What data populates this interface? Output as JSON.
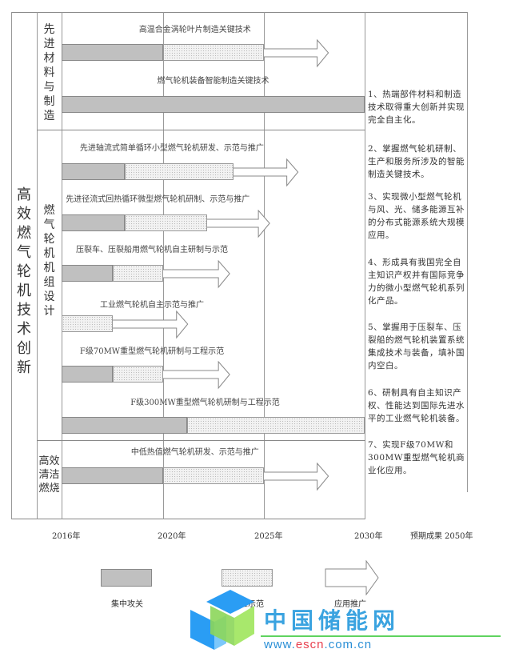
{
  "main_title": "高效燃气轮机技术创新",
  "categories": [
    {
      "label": "先进材料与制造"
    },
    {
      "label": "燃气轮机机组设计"
    },
    {
      "label": "高效清洁燃烧",
      "lines": [
        "高效",
        "清洁",
        "燃烧"
      ]
    }
  ],
  "axis": {
    "years": [
      "2016年",
      "2020年",
      "2025年",
      "2030年"
    ],
    "results_header": "预期成果",
    "end_label": "2050年"
  },
  "colors": {
    "focus": "#c0c0c0",
    "demo": "#f2f2f2",
    "border": "#888888"
  },
  "rows": [
    {
      "label": "高温合金涡轮叶片制造关键技术",
      "focus": [
        2016,
        2020
      ],
      "demo": [
        2020,
        2025
      ],
      "promote_end": 2028.2
    },
    {
      "label": "燃气轮机装备智能制造关键技术",
      "focus": [
        2016,
        2030
      ]
    },
    {
      "label": "先进轴流式简单循环小型燃气轮机研发、示范与推广",
      "focus": [
        2016,
        2018.5
      ],
      "demo": [
        2018.5,
        2023.5
      ],
      "promote_end": 2026.7
    },
    {
      "label": "先进径流式回热循环微型燃气轮机研制、示范与推广",
      "focus": [
        2016,
        2018.5
      ],
      "demo": [
        2018.5,
        2022.2
      ],
      "promote_end": 2025.3
    },
    {
      "label": "压裂车、压裂船用燃气轮机自主研制与示范",
      "focus": [
        2016,
        2018
      ],
      "demo": [
        2018,
        2020
      ],
      "promote_end": 2023.3
    },
    {
      "label": "工业燃气轮机自主示范与推广",
      "demo": [
        2016,
        2018
      ],
      "promote_end": 2021.2
    },
    {
      "label": "F级70MW重型燃气轮机研制与工程示范",
      "focus": [
        2016,
        2018
      ],
      "demo": [
        2018,
        2020
      ],
      "promote_end": 2023.3
    },
    {
      "label": "F级300MW重型燃气轮机研制与工程示范",
      "focus": [
        2016,
        2021.2
      ],
      "demo": [
        2021.2,
        2030
      ]
    },
    {
      "label": "中低热值燃气轮机研发、示范与推广",
      "focus": [
        2016,
        2020
      ],
      "demo": [
        2020,
        2025
      ],
      "promote_end": 2028.2
    }
  ],
  "results": [
    "1、热端部件材料和制造技术取得重大创新并实现完全自主化。",
    "2、掌握燃气轮机研制、生产和服务所涉及的智能制造关键技术。",
    "3、实现微小型燃气轮机与风、光、储多能源互补的分布式能源系统大规模应用。",
    "4、形成具有我国完全自主知识产权并有国际竞争力的微小型燃气轮机系列化产品。",
    "5、掌握用于压裂车、压裂船的燃气轮机装置系统集成技术与装备，填补国内空白。",
    "6、研制具有自主知识产权、性能达到国际先进水平的工业燃气轮机装备。",
    "7、实现F级70MW和300MW重型燃气轮机商业化应用。"
  ],
  "legend": [
    {
      "label": "集中攻关",
      "style": "focus"
    },
    {
      "label": "试验示范",
      "style": "demo"
    },
    {
      "label": "应用推广",
      "style": "arrow"
    }
  ],
  "watermark": {
    "name": "中国储能网",
    "url_prefix": "www.",
    "url_mid": "escn",
    "url_suffix": ".com.cn"
  }
}
